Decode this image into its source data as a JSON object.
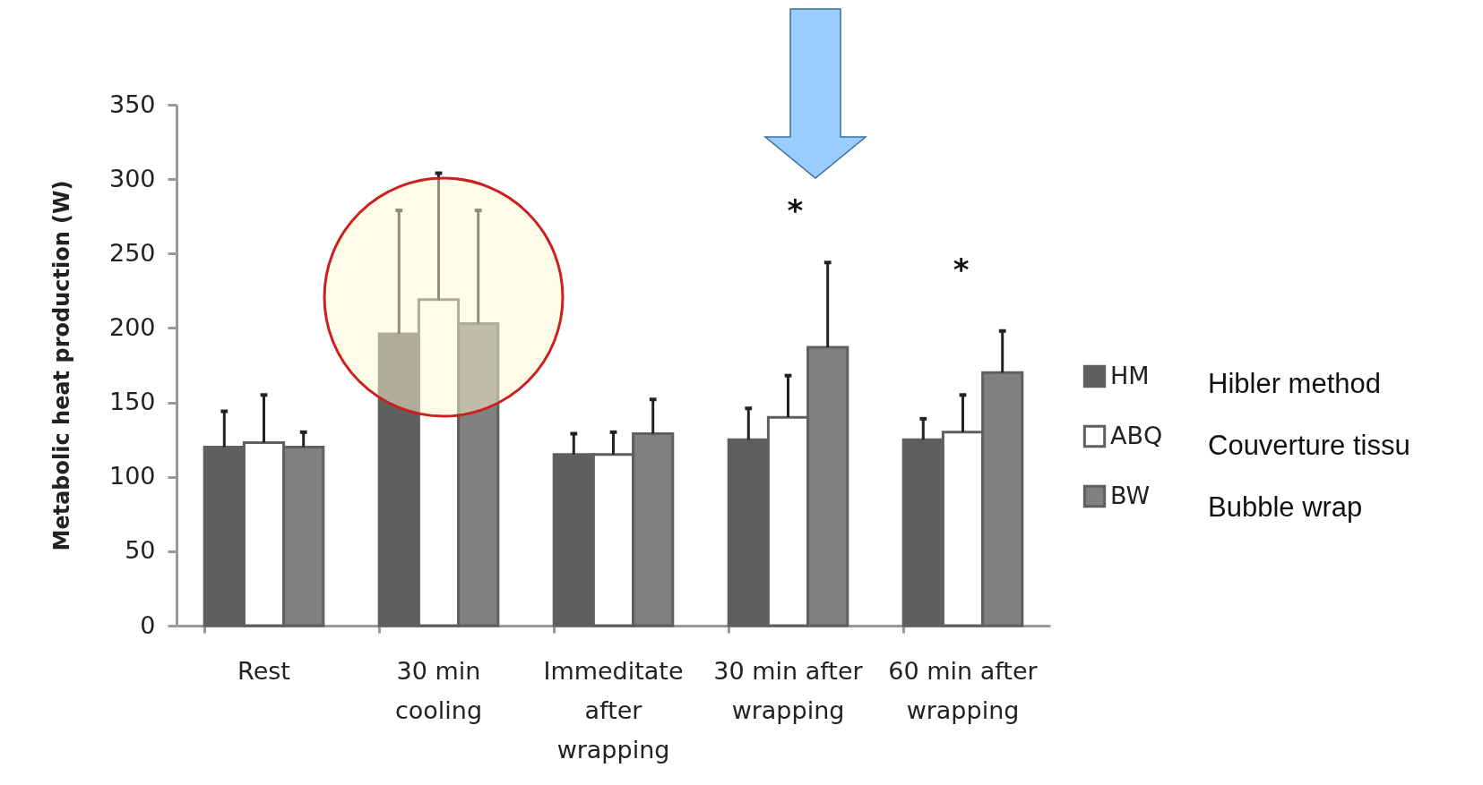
{
  "chart_data": {
    "type": "bar",
    "ylabel": "Metabolic heat production (W)",
    "categories": [
      "Rest",
      "30 min cooling",
      "Immeditate after wrapping",
      "30 min after wrapping",
      "60 min after wrapping"
    ],
    "series": [
      {
        "name": "HM",
        "color": "#5f5f5f",
        "values": [
          120,
          196,
          115,
          125,
          125
        ],
        "errors": [
          [
            120,
            144
          ],
          [
            196,
            279
          ],
          [
            115,
            129
          ],
          [
            125,
            146
          ],
          [
            125,
            139
          ]
        ]
      },
      {
        "name": "ABQ",
        "color": "#ffffff",
        "values": [
          123,
          219,
          115,
          140,
          130
        ],
        "errors": [
          [
            123,
            155
          ],
          [
            219,
            304
          ],
          [
            115,
            130
          ],
          [
            140,
            168
          ],
          [
            130,
            155
          ]
        ]
      },
      {
        "name": "BW",
        "color": "#808080",
        "values": [
          120,
          203,
          129,
          187,
          170
        ],
        "errors": [
          [
            120,
            130
          ],
          [
            203,
            279
          ],
          [
            129,
            152
          ],
          [
            187,
            244
          ],
          [
            170,
            198
          ]
        ]
      }
    ],
    "ylim": [
      0,
      350
    ],
    "yticks": [
      0,
      50,
      100,
      150,
      200,
      250,
      300,
      350
    ],
    "grid": false,
    "legend": "right",
    "annotations": [
      "*",
      "*",
      "Hibler method",
      "Couverture tissu",
      "Bubble wrap"
    ]
  }
}
